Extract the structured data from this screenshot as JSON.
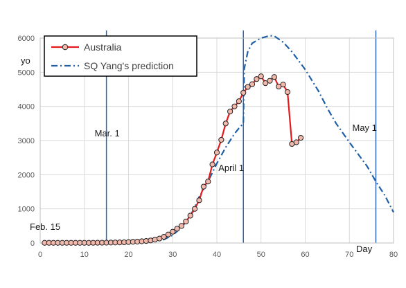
{
  "chart_data": {
    "type": "line",
    "xlim": [
      0,
      80
    ],
    "ylim": [
      0,
      6000
    ],
    "xticks": [
      0,
      10,
      20,
      30,
      40,
      50,
      60,
      70,
      80
    ],
    "yticks": [
      0,
      1000,
      2000,
      3000,
      4000,
      5000,
      6000
    ],
    "ylabel": "yo",
    "xlabel": "Day",
    "grid": true,
    "legend_position": "top-left",
    "series": [
      {
        "name": "Australia",
        "color": "#e3191c",
        "marker": "circle",
        "x": [
          1,
          2,
          3,
          4,
          5,
          6,
          7,
          8,
          9,
          10,
          11,
          12,
          13,
          14,
          15,
          16,
          17,
          18,
          19,
          20,
          21,
          22,
          23,
          24,
          25,
          26,
          27,
          28,
          29,
          30,
          31,
          32,
          33,
          34,
          35,
          36,
          37,
          38,
          39,
          40,
          41,
          42,
          43,
          44,
          45,
          46,
          47,
          48,
          49,
          50,
          51,
          52,
          53,
          54,
          55,
          56,
          57,
          58,
          59
        ],
        "y": [
          5,
          5,
          5,
          5,
          5,
          5,
          5,
          5,
          5,
          5,
          5,
          6,
          8,
          9,
          10,
          12,
          15,
          18,
          22,
          28,
          35,
          40,
          50,
          60,
          75,
          100,
          130,
          180,
          250,
          330,
          420,
          500,
          630,
          800,
          1000,
          1250,
          1650,
          1800,
          2300,
          2650,
          3020,
          3500,
          3850,
          4000,
          4150,
          4400,
          4570,
          4650,
          4800,
          4880,
          4680,
          4750,
          4860,
          4580,
          4640,
          4420,
          2900,
          2950,
          3080
        ]
      },
      {
        "name": "SQ Yang's prediction",
        "color": "#1f5fa6",
        "style": "dash-dot",
        "x": [
          1,
          5,
          10,
          15,
          20,
          25,
          28,
          30,
          32,
          34,
          35,
          36,
          38,
          40,
          42,
          44,
          45,
          46,
          46.2,
          47,
          48,
          50,
          52,
          53,
          55,
          57,
          60,
          63,
          65,
          67,
          70,
          72,
          74,
          76,
          78,
          80
        ],
        "y": [
          0,
          0,
          0,
          0,
          15,
          45,
          100,
          230,
          450,
          800,
          1050,
          1350,
          1800,
          2330,
          2800,
          3200,
          3360,
          3500,
          5100,
          5600,
          5850,
          6000,
          6070,
          6060,
          5880,
          5600,
          5080,
          4450,
          3950,
          3500,
          2950,
          2600,
          2250,
          1800,
          1400,
          900
        ]
      }
    ],
    "annotations": [
      {
        "text": "Feb. 15"
      },
      {
        "text": "Mar. 1",
        "x": 15
      },
      {
        "text": "April 1",
        "x": 46
      },
      {
        "text": "May 1",
        "x": 76
      }
    ],
    "vlines": [
      15,
      46,
      76
    ]
  }
}
